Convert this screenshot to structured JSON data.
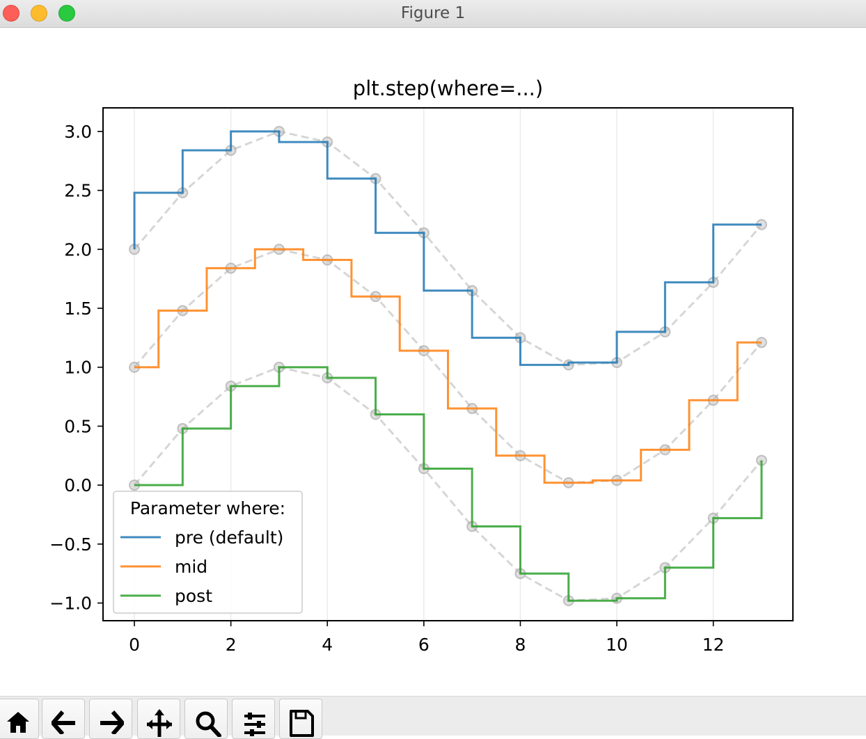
{
  "window": {
    "title": "Figure 1"
  },
  "toolbar": {
    "buttons": [
      {
        "name": "home-icon",
        "icon": "home"
      },
      {
        "name": "back-arrow-icon",
        "icon": "back"
      },
      {
        "name": "forward-arrow-icon",
        "icon": "forward"
      },
      {
        "name": "pan-icon",
        "icon": "pan"
      },
      {
        "name": "zoom-icon",
        "icon": "zoom"
      },
      {
        "name": "configure-subplots-icon",
        "icon": "subplots"
      },
      {
        "name": "save-icon",
        "icon": "save"
      }
    ]
  },
  "chart_data": {
    "type": "line",
    "title": "plt.step(where=...)",
    "xlabel": "",
    "ylabel": "",
    "xlim": [
      -0.65,
      13.65
    ],
    "ylim": [
      -1.15,
      3.2
    ],
    "x_ticks": [
      0,
      2,
      4,
      6,
      8,
      10,
      12
    ],
    "x_tick_labels": [
      "0",
      "2",
      "4",
      "6",
      "8",
      "10",
      "12"
    ],
    "y_ticks": [
      -1.0,
      -0.5,
      0.0,
      0.5,
      1.0,
      1.5,
      2.0,
      2.5,
      3.0
    ],
    "y_tick_labels": [
      "−1.0",
      "−0.5",
      "0.0",
      "0.5",
      "1.0",
      "1.5",
      "2.0",
      "2.5",
      "3.0"
    ],
    "x_grid": true,
    "y_grid": false,
    "x": [
      0,
      1,
      2,
      3,
      4,
      5,
      6,
      7,
      8,
      9,
      10,
      11,
      12,
      13
    ],
    "series": [
      {
        "name": "pre (default)",
        "where": "pre",
        "color": "#1f77b4",
        "values": [
          2.0,
          2.48,
          2.84,
          3.0,
          2.91,
          2.6,
          2.14,
          1.65,
          1.25,
          1.02,
          1.04,
          1.3,
          1.72,
          2.21
        ]
      },
      {
        "name": "mid",
        "where": "mid",
        "color": "#ff7f0e",
        "values": [
          1.0,
          1.48,
          1.84,
          2.0,
          1.91,
          1.6,
          1.14,
          0.65,
          0.25,
          0.02,
          0.04,
          0.3,
          0.72,
          1.21
        ]
      },
      {
        "name": "post",
        "where": "post",
        "color": "#2ca02c",
        "values": [
          0.0,
          0.48,
          0.84,
          1.0,
          0.91,
          0.6,
          0.14,
          -0.35,
          -0.75,
          -0.98,
          -0.96,
          -0.7,
          -0.28,
          0.21
        ]
      }
    ],
    "reference_style": {
      "color": "#bbbbbb",
      "dashed": true,
      "markers": "circle"
    },
    "legend": {
      "title": "Parameter where:",
      "location": "lower left"
    }
  }
}
